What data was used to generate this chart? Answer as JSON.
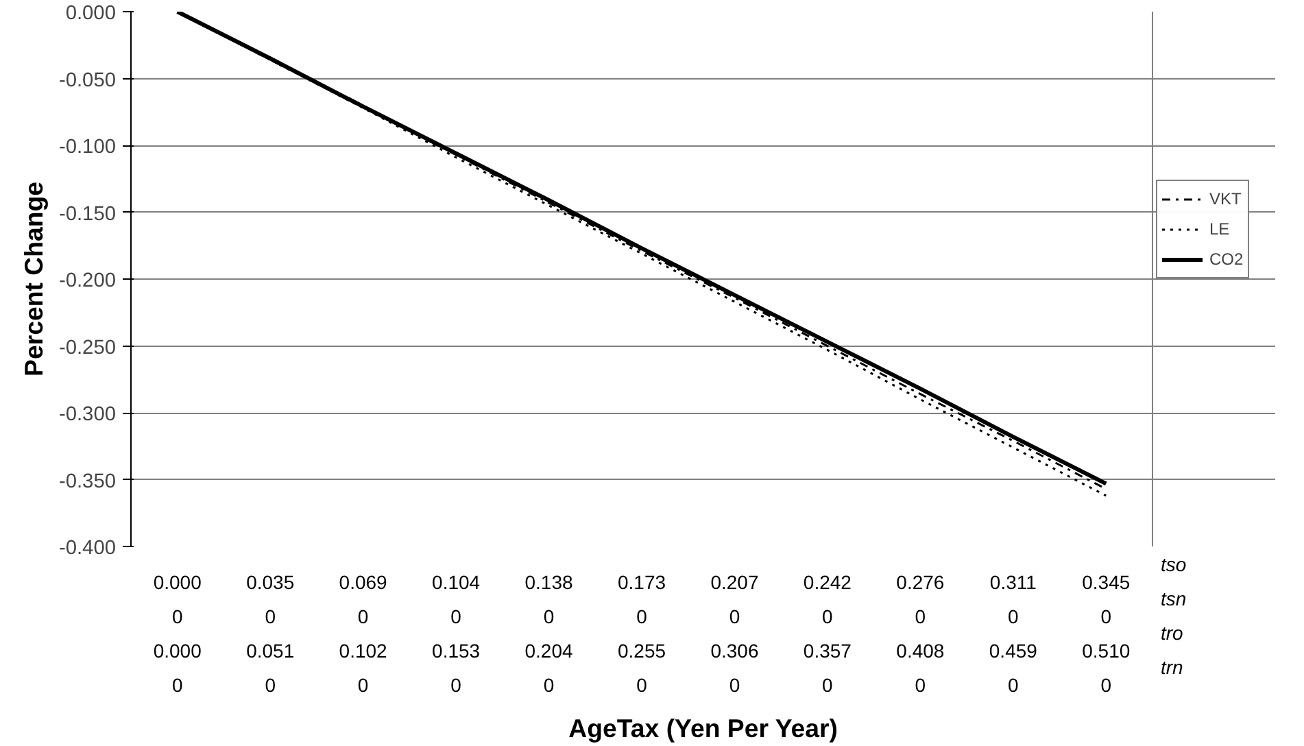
{
  "chart_data": {
    "type": "line",
    "xlabel": "AgeTax (Yen Per Year)",
    "ylabel": "Percent Change",
    "categories": [
      "0.000\n0\n0.000\n0",
      "0.035\n0\n0.051\n0",
      "0.069\n0\n0.102\n0",
      "0.104\n0\n0.153\n0",
      "0.138\n0\n0.204\n0",
      "0.173\n0\n0.255\n0",
      "0.207\n0\n0.306\n0",
      "0.242\n0\n0.357\n0",
      "0.276\n0\n0.408\n0",
      "0.311\n0\n0.459\n0",
      "0.345\n0\n0.510\n0"
    ],
    "series": [
      {
        "name": "VKT",
        "color": "#000000",
        "line_style": "dashdot",
        "values": [
          0,
          -0.036,
          -0.071,
          -0.107,
          -0.143,
          -0.179,
          -0.214,
          -0.25,
          -0.286,
          -0.321,
          -0.357
        ]
      },
      {
        "name": "LE",
        "color": "#000000",
        "line_style": "dotted",
        "values": [
          0,
          -0.036,
          -0.072,
          -0.109,
          -0.145,
          -0.181,
          -0.217,
          -0.253,
          -0.29,
          -0.326,
          -0.362
        ]
      },
      {
        "name": "CO2",
        "color": "#000000",
        "line_style": "solid",
        "values": [
          0,
          -0.035,
          -0.071,
          -0.106,
          -0.141,
          -0.177,
          -0.212,
          -0.247,
          -0.282,
          -0.318,
          -0.353
        ]
      }
    ],
    "ylim": [
      -0.4,
      0
    ],
    "yticks": [
      {
        "value": 0,
        "label": "0.000"
      },
      {
        "value": -0.05,
        "label": "-0.050"
      },
      {
        "value": -0.1,
        "label": "-0.100"
      },
      {
        "value": -0.15,
        "label": "-0.150"
      },
      {
        "value": -0.2,
        "label": "-0.200"
      },
      {
        "value": -0.25,
        "label": "-0.250"
      },
      {
        "value": -0.3,
        "label": "-0.300"
      },
      {
        "value": -0.35,
        "label": "-0.350"
      },
      {
        "value": -0.4,
        "label": "-0.400"
      }
    ],
    "grid": "y",
    "legend": "right",
    "annotations": [
      "tso",
      "tsn",
      "tro",
      "trn"
    ]
  }
}
